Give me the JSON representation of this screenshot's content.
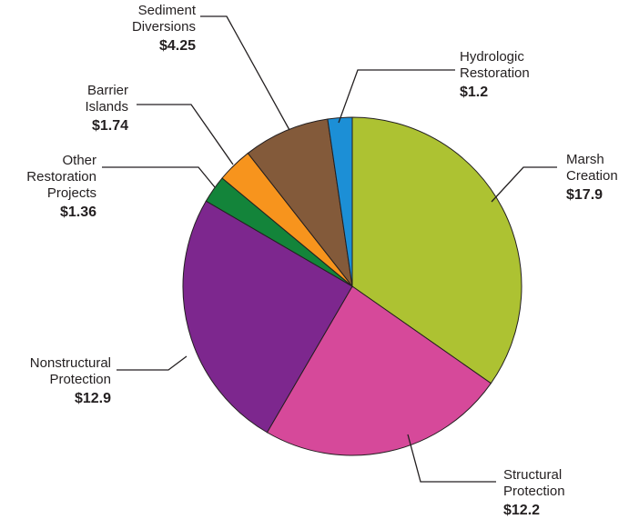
{
  "chart_data": {
    "type": "pie",
    "title": "",
    "slices": [
      {
        "name_lines": [
          "Marsh",
          "Creation"
        ],
        "label": "$17.9",
        "value": 17.9,
        "color": "#adc232"
      },
      {
        "name_lines": [
          "Structural",
          "Protection"
        ],
        "label": "$12.2",
        "value": 12.2,
        "color": "#d6499a"
      },
      {
        "name_lines": [
          "Nonstructural",
          "Protection"
        ],
        "label": "$12.9",
        "value": 12.9,
        "color": "#7d278e"
      },
      {
        "name_lines": [
          "Other",
          "Restoration",
          "Projects"
        ],
        "label": "$1.36",
        "value": 1.36,
        "color": "#13843a"
      },
      {
        "name_lines": [
          "Barrier",
          "Islands"
        ],
        "label": "$1.74",
        "value": 1.74,
        "color": "#f7941d"
      },
      {
        "name_lines": [
          "Sediment",
          "Diversions"
        ],
        "label": "$4.25",
        "value": 4.25,
        "color": "#835a3a"
      },
      {
        "name_lines": [
          "Hydrologic",
          "Restoration"
        ],
        "label": "$1.2",
        "value": 1.2,
        "color": "#1c8fd6"
      }
    ]
  }
}
